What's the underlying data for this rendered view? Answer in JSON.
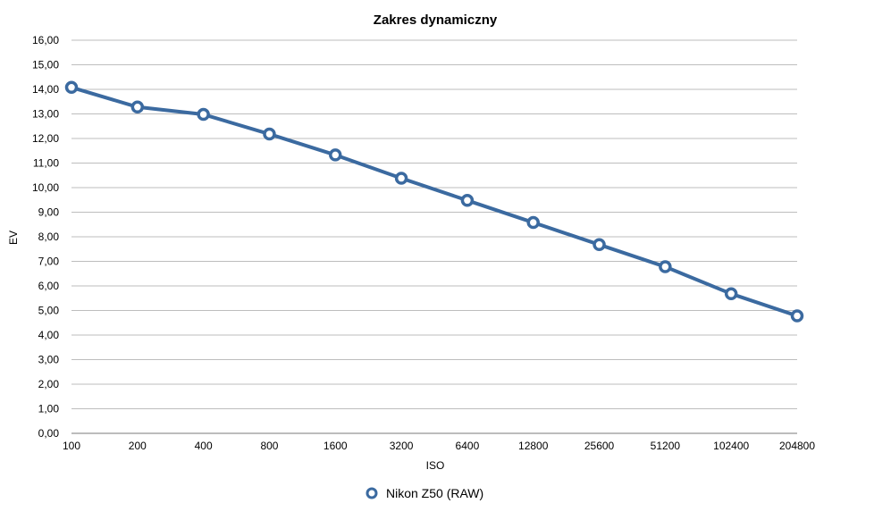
{
  "chart_data": {
    "type": "line",
    "title": "Zakres dynamiczny",
    "xlabel": "ISO",
    "ylabel": "EV",
    "categories": [
      "100",
      "200",
      "400",
      "800",
      "1600",
      "3200",
      "6400",
      "12800",
      "25600",
      "51200",
      "102400",
      "204800"
    ],
    "series": [
      {
        "name": "Nikon Z50 (RAW)",
        "color": "#3b6aa0",
        "values": [
          14.08,
          13.28,
          12.98,
          12.18,
          11.33,
          10.38,
          9.48,
          8.58,
          7.68,
          6.78,
          5.68,
          4.78
        ]
      }
    ],
    "ylim": [
      0,
      16
    ],
    "ytick_step": 1,
    "ytick_labels": [
      "0,00",
      "1,00",
      "2,00",
      "3,00",
      "4,00",
      "5,00",
      "6,00",
      "7,00",
      "8,00",
      "9,00",
      "10,00",
      "11,00",
      "12,00",
      "13,00",
      "14,00",
      "15,00",
      "16,00"
    ],
    "grid": true,
    "legend_position": "bottom-center"
  }
}
